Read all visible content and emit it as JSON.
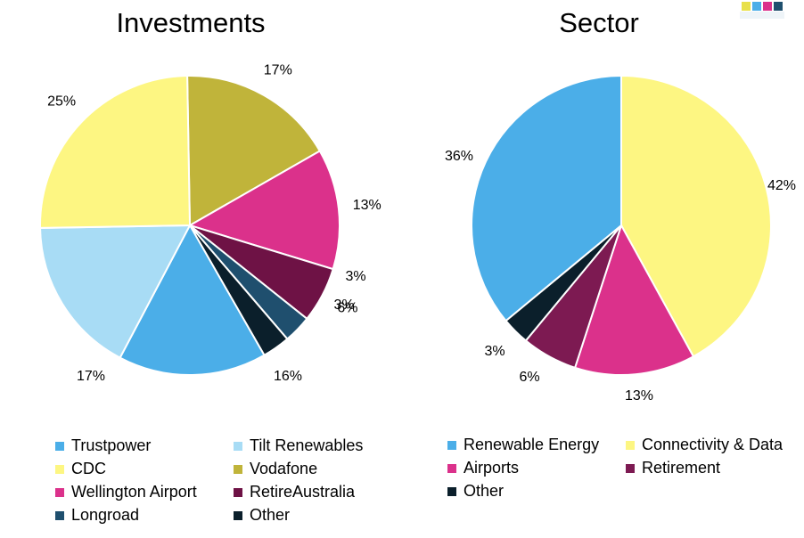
{
  "chart_data": [
    {
      "type": "pie",
      "title": "Investments",
      "categories": [
        "Trustpower",
        "Tilt Renewables",
        "CDC",
        "Vodafone",
        "Wellington Airport",
        "RetireAustralia",
        "Longroad",
        "Other"
      ],
      "values": [
        16,
        17,
        25,
        17,
        13,
        6,
        3,
        3
      ],
      "labels": [
        "16%",
        "17%",
        "25%",
        "17%",
        "13%",
        "6%",
        "3%",
        "3%"
      ],
      "colors": [
        "#4baee8",
        "#a8dcf5",
        "#fdf682",
        "#c0b43a",
        "#db318b",
        "#6e1245",
        "#1f4f6e",
        "#0b1f2b"
      ],
      "slice_order_clockwise_from_top": [
        "Vodafone",
        "Wellington Airport",
        "RetireAustralia",
        "Longroad",
        "Other",
        "Trustpower",
        "Tilt Renewables",
        "CDC"
      ],
      "legend_placement": "bottom"
    },
    {
      "type": "pie",
      "title": "Sector",
      "categories": [
        "Renewable Energy",
        "Connectivity & Data",
        "Airports",
        "Retirement",
        "Other"
      ],
      "values": [
        36,
        42,
        13,
        6,
        3
      ],
      "labels": [
        "36%",
        "42%",
        "13%",
        "6%",
        "3%"
      ],
      "colors": [
        "#4baee8",
        "#fdf682",
        "#db318b",
        "#7d1a52",
        "#0b1f2b"
      ],
      "slice_order_clockwise_from_top": [
        "Connectivity & Data",
        "Airports",
        "Retirement",
        "Other",
        "Renewable Energy"
      ],
      "legend_placement": "bottom"
    }
  ]
}
